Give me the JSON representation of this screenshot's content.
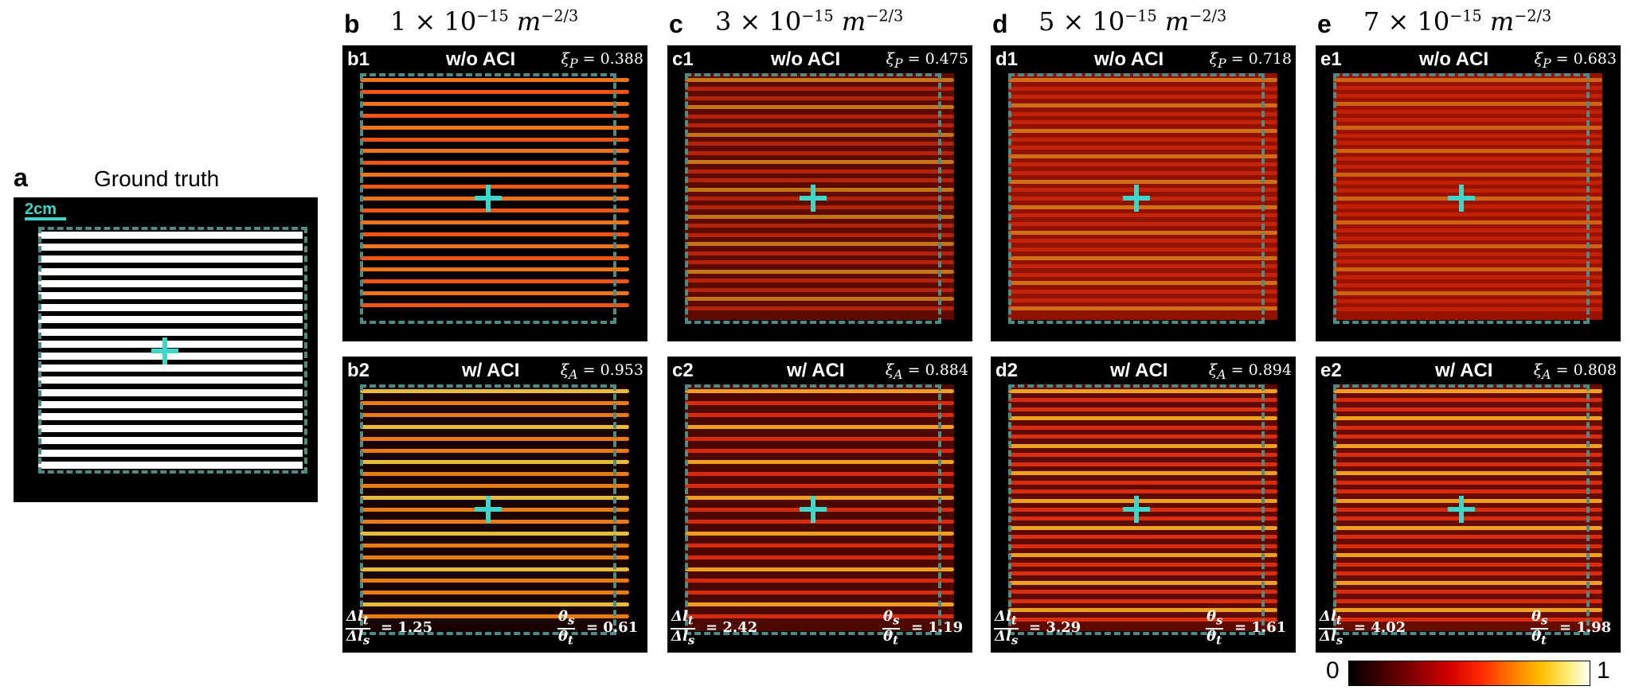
{
  "colors": {
    "accent": "#3fd6c9",
    "dash": "#4e8a86"
  },
  "panel_a": {
    "letter": "a",
    "title": "Ground truth",
    "scale": "2cm"
  },
  "columns": [
    {
      "letter": "b",
      "coef": "1",
      "top": {
        "label": "b1",
        "aci": "w/o ACI",
        "xi_sym": "P",
        "xi_val": "0.388"
      },
      "bottom": {
        "label": "b2",
        "aci": "w/ ACI",
        "xi_sym": "A",
        "xi_val": "0.953"
      },
      "ratio_l": "1.25",
      "ratio_theta": "0.61"
    },
    {
      "letter": "c",
      "coef": "3",
      "top": {
        "label": "c1",
        "aci": "w/o ACI",
        "xi_sym": "P",
        "xi_val": "0.475"
      },
      "bottom": {
        "label": "c2",
        "aci": "w/ ACI",
        "xi_sym": "A",
        "xi_val": "0.884"
      },
      "ratio_l": "2.42",
      "ratio_theta": "1.19"
    },
    {
      "letter": "d",
      "coef": "5",
      "top": {
        "label": "d1",
        "aci": "w/o ACI",
        "xi_sym": "P",
        "xi_val": "0.718"
      },
      "bottom": {
        "label": "d2",
        "aci": "w/ ACI",
        "xi_sym": "A",
        "xi_val": "0.894"
      },
      "ratio_l": "3.29",
      "ratio_theta": "1.61"
    },
    {
      "letter": "e",
      "coef": "7",
      "top": {
        "label": "e1",
        "aci": "w/o ACI",
        "xi_sym": "P",
        "xi_val": "0.683"
      },
      "bottom": {
        "label": "e2",
        "aci": "w/ ACI",
        "xi_sym": "A",
        "xi_val": "0.808"
      },
      "ratio_l": "4.02",
      "ratio_theta": "1.98"
    }
  ],
  "colorbar": {
    "min": "0",
    "max": "1"
  }
}
